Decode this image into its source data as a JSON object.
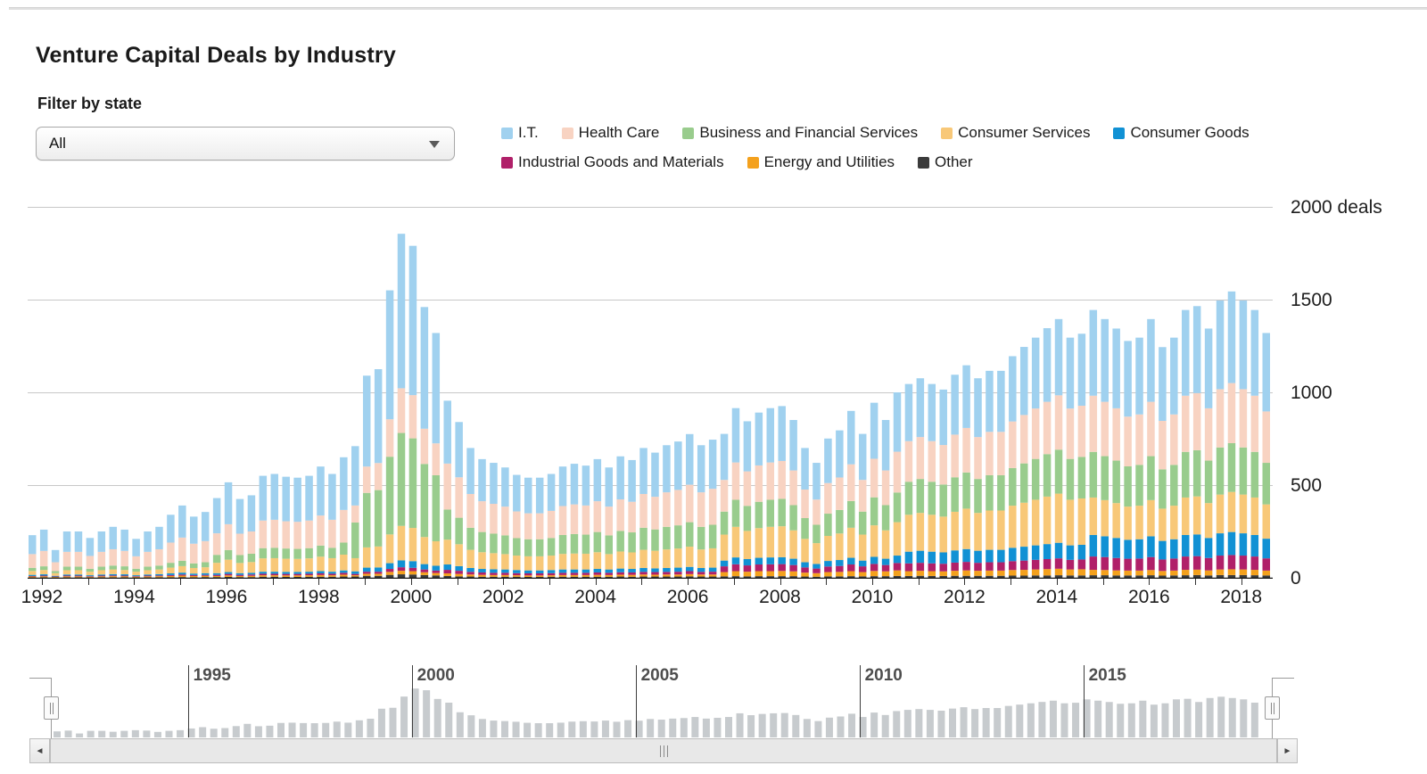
{
  "header": {
    "title": "Venture Capital Deals by Industry"
  },
  "filter": {
    "label": "Filter by state",
    "selected_value": "All"
  },
  "legend": {
    "rows": [
      [
        {
          "label": "I.T.",
          "color": "#a0d1ef"
        },
        {
          "label": "Health Care",
          "color": "#f8d3c2"
        },
        {
          "label": "Business and Financial Services",
          "color": "#99cc8d"
        },
        {
          "label": "Consumer Services",
          "color": "#f8c878"
        },
        {
          "label": "Consumer Goods",
          "color": "#1191d4"
        }
      ],
      [
        {
          "label": "Industrial Goods and Materials",
          "color": "#b02069"
        },
        {
          "label": "Energy and Utilities",
          "color": "#f4a11d"
        },
        {
          "label": "Other",
          "color": "#3b3b3b"
        }
      ]
    ]
  },
  "chart_data": {
    "type": "bar",
    "stacked": true,
    "title": "Venture Capital Deals by Industry",
    "x_unit": "quarter",
    "x_range": [
      "1992 Q1",
      "2018 Q4"
    ],
    "ylim": [
      0,
      2000
    ],
    "grid": true,
    "legend_position": "top",
    "y_ticks": [
      {
        "value": 2000,
        "label": "2000 deals"
      },
      {
        "value": 1500,
        "label": "1500"
      },
      {
        "value": 1000,
        "label": "1000"
      },
      {
        "value": 500,
        "label": "500"
      },
      {
        "value": 0,
        "label": "0"
      }
    ],
    "x_labels": [
      "1992",
      "1994",
      "1996",
      "1998",
      "2000",
      "2002",
      "2004",
      "2006",
      "2008",
      "2010",
      "2012",
      "2014",
      "2016",
      "2018"
    ],
    "x_label_step_years": 2,
    "x_minor_tick_every_year": true,
    "stack_order": "bottom_to_top",
    "series": [
      {
        "name": "Other",
        "color": "#3b3b3b",
        "values": [
          2,
          3,
          2,
          3,
          3,
          2,
          3,
          3,
          3,
          2,
          3,
          3,
          3,
          4,
          3,
          4,
          4,
          5,
          4,
          4,
          6,
          6,
          5,
          5,
          6,
          6,
          6,
          7,
          7,
          11,
          11,
          16,
          19,
          18,
          15,
          13,
          10,
          8,
          7,
          6,
          6,
          6,
          6,
          5,
          5,
          6,
          6,
          6,
          6,
          6,
          6,
          7,
          6,
          7,
          7,
          7,
          7,
          8,
          7,
          7,
          8,
          9,
          8,
          9,
          9,
          9,
          9,
          7,
          6,
          8,
          8,
          9,
          8,
          9,
          9,
          10,
          10,
          11,
          10,
          10,
          11,
          11,
          11,
          11,
          11,
          12,
          12,
          13,
          13,
          14,
          13,
          13,
          14,
          14,
          13,
          13,
          13,
          14,
          12,
          13,
          14,
          15,
          13,
          15,
          15,
          15,
          14,
          13
        ]
      },
      {
        "name": "Energy and Utilities",
        "color": "#f4a11d",
        "values": [
          5,
          5,
          3,
          5,
          5,
          4,
          5,
          6,
          5,
          4,
          5,
          6,
          7,
          8,
          7,
          7,
          6,
          8,
          6,
          7,
          8,
          8,
          8,
          8,
          8,
          9,
          8,
          10,
          7,
          11,
          11,
          16,
          19,
          18,
          15,
          13,
          14,
          13,
          11,
          10,
          9,
          9,
          8,
          8,
          8,
          8,
          9,
          9,
          9,
          10,
          9,
          10,
          10,
          11,
          10,
          11,
          11,
          12,
          11,
          11,
          23,
          27,
          25,
          27,
          27,
          28,
          26,
          21,
          19,
          23,
          24,
          27,
          23,
          28,
          26,
          30,
          26,
          27,
          26,
          25,
          27,
          29,
          27,
          28,
          28,
          30,
          31,
          32,
          34,
          35,
          32,
          33,
          29,
          28,
          27,
          26,
          26,
          28,
          25,
          26,
          29,
          29,
          27,
          30,
          31,
          30,
          29,
          26
        ]
      },
      {
        "name": "Industrial Goods and Materials",
        "color": "#b02069",
        "values": [
          3,
          4,
          2,
          4,
          4,
          3,
          4,
          4,
          4,
          3,
          4,
          4,
          5,
          6,
          5,
          5,
          6,
          8,
          6,
          7,
          8,
          8,
          8,
          8,
          8,
          9,
          8,
          10,
          7,
          11,
          11,
          16,
          19,
          18,
          15,
          13,
          19,
          17,
          14,
          13,
          12,
          12,
          11,
          11,
          11,
          11,
          12,
          12,
          12,
          13,
          12,
          13,
          13,
          14,
          14,
          14,
          15,
          16,
          14,
          15,
          31,
          37,
          34,
          36,
          37,
          37,
          34,
          28,
          25,
          30,
          32,
          36,
          31,
          38,
          34,
          40,
          42,
          43,
          42,
          41,
          44,
          46,
          43,
          45,
          45,
          48,
          50,
          52,
          54,
          56,
          52,
          53,
          72,
          70,
          67,
          64,
          65,
          70,
          62,
          65,
          72,
          73,
          67,
          75,
          77,
          75,
          72,
          66
        ]
      },
      {
        "name": "Consumer Goods",
        "color": "#1191d4",
        "values": [
          6,
          7,
          4,
          6,
          6,
          5,
          6,
          7,
          7,
          5,
          6,
          7,
          9,
          10,
          8,
          9,
          9,
          10,
          9,
          9,
          11,
          11,
          11,
          11,
          11,
          12,
          11,
          13,
          14,
          22,
          23,
          31,
          37,
          36,
          29,
          26,
          29,
          25,
          21,
          19,
          19,
          18,
          17,
          16,
          16,
          17,
          18,
          18,
          18,
          19,
          18,
          20,
          19,
          21,
          20,
          21,
          22,
          23,
          21,
          22,
          31,
          37,
          34,
          36,
          37,
          37,
          34,
          28,
          25,
          30,
          32,
          36,
          31,
          38,
          34,
          40,
          63,
          65,
          63,
          61,
          66,
          69,
          65,
          67,
          67,
          72,
          75,
          78,
          81,
          84,
          78,
          79,
          116,
          112,
          108,
          102,
          104,
          112,
          100,
          104,
          116,
          117,
          108,
          120,
          124,
          120,
          116,
          106
        ]
      },
      {
        "name": "Consumer Services",
        "color": "#f8c878",
        "values": [
          21,
          23,
          14,
          23,
          23,
          19,
          23,
          25,
          23,
          19,
          23,
          25,
          31,
          35,
          30,
          32,
          56,
          67,
          55,
          58,
          72,
          73,
          71,
          70,
          72,
          78,
          73,
          85,
          71,
          109,
          113,
          155,
          186,
          179,
          146,
          132,
          134,
          118,
          98,
          90,
          87,
          83,
          78,
          76,
          76,
          78,
          84,
          86,
          85,
          90,
          83,
          92,
          89,
          98,
          95,
          100,
          103,
          109,
          100,
          104,
          140,
          165,
          152,
          160,
          165,
          167,
          153,
          126,
          112,
          135,
          143,
          162,
          140,
          170,
          153,
          180,
          199,
          204,
          199,
          193,
          208,
          218,
          204,
          212,
          212,
          227,
          237,
          246,
          256,
          265,
          246,
          250,
          202,
          195,
          188,
          179,
          181,
          195,
          174,
          181,
          202,
          205,
          188,
          209,
          216,
          209,
          202,
          185
        ]
      },
      {
        "name": "Business and Financial Services",
        "color": "#99cc8d",
        "values": [
          17,
          20,
          11,
          19,
          19,
          16,
          19,
          21,
          20,
          16,
          19,
          21,
          26,
          29,
          25,
          27,
          43,
          52,
          43,
          45,
          55,
          56,
          55,
          54,
          55,
          60,
          56,
          65,
          192,
          294,
          304,
          419,
          501,
          483,
          394,
          356,
          162,
          143,
          119,
          109,
          105,
          101,
          94,
          92,
          92,
          95,
          102,
          105,
          103,
          109,
          101,
          111,
          108,
          119,
          115,
          122,
          125,
          132,
          122,
          127,
          124,
          146,
          135,
          142,
          146,
          148,
          136,
          112,
          99,
          120,
          127,
          144,
          124,
          151,
          136,
          160,
          178,
          183,
          178,
          173,
          186,
          195,
          183,
          190,
          190,
          203,
          212,
          220,
          229,
          237,
          220,
          224,
          246,
          237,
          229,
          217,
          220,
          237,
          212,
          220,
          246,
          249,
          229,
          254,
          263,
          254,
          246,
          224
        ]
      },
      {
        "name": "Health Care",
        "color": "#f8d3c2",
        "values": [
          74,
          83,
          48,
          80,
          80,
          69,
          80,
          88,
          83,
          67,
          80,
          88,
          109,
          125,
          106,
          114,
          116,
          139,
          115,
          120,
          149,
          151,
          147,
          146,
          149,
          162,
          151,
          176,
          92,
          142,
          146,
          202,
          241,
          233,
          190,
          172,
          248,
          218,
          182,
          166,
          161,
          155,
          144,
          140,
          140,
          146,
          156,
          160,
          157,
          166,
          155,
          170,
          165,
          182,
          176,
          186,
          191,
          202,
          186,
          194,
          171,
          201,
          186,
          196,
          201,
          204,
          187,
          154,
          136,
          165,
          175,
          198,
          171,
          208,
          187,
          220,
          219,
          226,
          219,
          213,
          230,
          240,
          226,
          234,
          234,
          251,
          261,
          272,
          282,
          293,
          272,
          276,
          303,
          293,
          282,
          268,
          272,
          293,
          261,
          272,
          303,
          308,
          282,
          314,
          324,
          314,
          303,
          277
        ]
      },
      {
        "name": "I.T.",
        "color": "#a0d1ef",
        "values": [
          102,
          115,
          66,
          110,
          110,
          97,
          110,
          121,
          115,
          94,
          110,
          121,
          150,
          173,
          146,
          157,
          190,
          226,
          187,
          195,
          241,
          247,
          240,
          238,
          241,
          264,
          247,
          284,
          320,
          490,
          506,
          695,
          833,
          805,
          656,
          595,
          339,
          298,
          248,
          227,
          221,
          211,
          197,
          192,
          192,
          199,
          213,
          219,
          215,
          227,
          211,
          232,
          225,
          248,
          238,
          254,
          261,
          273,
          254,
          265,
          248,
          293,
          270,
          285,
          293,
          296,
          272,
          224,
          198,
          240,
          254,
          288,
          248,
          302,
          272,
          320,
          308,
          317,
          308,
          299,
          323,
          338,
          317,
          329,
          329,
          352,
          367,
          382,
          397,
          411,
          382,
          388,
          462,
          446,
          430,
          408,
          414,
          446,
          398,
          414,
          462,
          469,
          430,
          478,
          494,
          478,
          462,
          423
        ]
      }
    ]
  },
  "navigator": {
    "year_labels": [
      "1995",
      "2000",
      "2005",
      "2010",
      "2015"
    ],
    "bar_color": "#c7cbce"
  },
  "scrollbar": {
    "left_arrow": "◄",
    "right_arrow": "►",
    "grip": "|||"
  }
}
